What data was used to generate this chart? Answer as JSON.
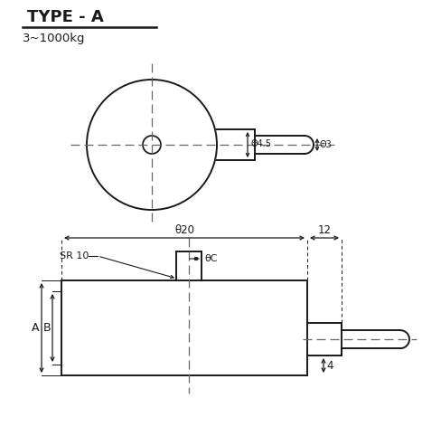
{
  "title": "TYPE - A",
  "subtitle": "3~1000kg",
  "bg_color": "#ffffff",
  "line_color": "#1a1a1a",
  "dash_color": "#666666",
  "annotations": {
    "phi45": "Θ4.5",
    "phi3": "Θ3",
    "phi20": "θ20",
    "phiC": "θC",
    "SR10": "SR 10",
    "dim12": "12",
    "dim4": "4",
    "A": "A",
    "B": "B"
  },
  "lw_main": 1.4,
  "lw_dim": 0.9,
  "lw_dash": 0.9
}
